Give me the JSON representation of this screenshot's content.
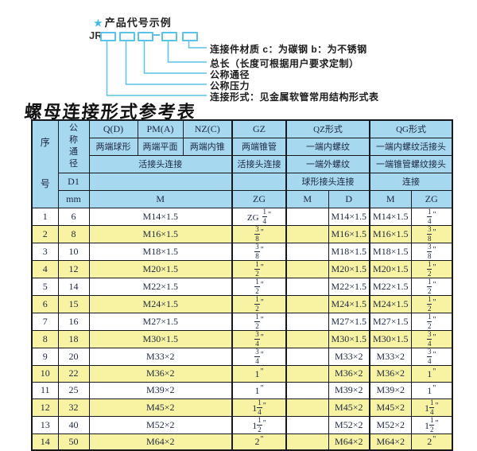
{
  "diagram": {
    "star": "★",
    "heading": "产品代号示例",
    "code_prefix": "JR",
    "labels": [
      "连接件材质  c：为碳钢  b：为不锈钢",
      "总长（长度可根据用户要求定制）",
      "公称通径",
      "公称压力",
      "连接形式：见金属软管常用结构形式表"
    ],
    "accent_color": "#58c4e9"
  },
  "table": {
    "title": "螺母连接形式参考表",
    "inch_mark": "\"",
    "colors": {
      "header_bg": "#a6d8ef",
      "alt_row_bg": "#f8f3a3",
      "border": "#15181d",
      "text": "#1c2740"
    },
    "header": {
      "seq": "序号",
      "dn": "公称通径",
      "d1": "D1",
      "mm": "mm",
      "q": "Q(D)",
      "pm": "PM(A)",
      "nz": "NZ(C)",
      "gz": "GZ",
      "qz": "QZ形式",
      "qg": "QG形式",
      "q_desc": "两端球形",
      "pm_desc": "两端平面",
      "nz_desc": "两端内锥",
      "gz_desc": "两端锥管",
      "qz_desc1": "一端内螺纹",
      "qg_desc1": "一端内螺纹活接头",
      "union_conn": "活接头连接",
      "gz_conn": "活接头连接",
      "qz_desc2": "一端外螺纹",
      "qg_desc2": "一端锥管螺纹接头",
      "qz_conn": "球形接头连接",
      "qg_conn": "连接",
      "m_label": "M",
      "zg_label": "ZG",
      "qz_m_label": "M",
      "qz_d_label": "D",
      "qg_m_label": "M",
      "qg_zg_label": "ZG"
    },
    "rows": [
      {
        "no": "1",
        "dn": "6",
        "m": "M14×1.5",
        "zg": {
          "pre": "ZG",
          "num": "1",
          "den": "4"
        },
        "qz_m": "",
        "qz_d": "M14×1.5",
        "qg_m": "M14×1.5",
        "qg_zg": {
          "num": "1",
          "den": "4"
        }
      },
      {
        "no": "2",
        "dn": "8",
        "m": "M16×1.5",
        "zg": {
          "num": "3",
          "den": "8"
        },
        "qz_m": "",
        "qz_d": "M16×1.5",
        "qg_m": "M16×1.5",
        "qg_zg": {
          "num": "3",
          "den": "8"
        }
      },
      {
        "no": "3",
        "dn": "10",
        "m": "M18×1.5",
        "zg": {
          "num": "3",
          "den": "8"
        },
        "qz_m": "",
        "qz_d": "M18×1.5",
        "qg_m": "M18×1.5",
        "qg_zg": {
          "num": "3",
          "den": "8"
        }
      },
      {
        "no": "4",
        "dn": "12",
        "m": "M20×1.5",
        "zg": {
          "num": "1",
          "den": "2"
        },
        "qz_m": "",
        "qz_d": "M20×1.5",
        "qg_m": "M20×1.5",
        "qg_zg": {
          "num": "1",
          "den": "2"
        }
      },
      {
        "no": "5",
        "dn": "14",
        "m": "M22×1.5",
        "zg": {
          "num": "1",
          "den": "2"
        },
        "qz_m": "",
        "qz_d": "M22×1.5",
        "qg_m": "M22×1.5",
        "qg_zg": {
          "num": "1",
          "den": "2"
        }
      },
      {
        "no": "6",
        "dn": "15",
        "m": "M24×1.5",
        "zg": {
          "num": "1",
          "den": "2"
        },
        "qz_m": "",
        "qz_d": "M24×1.5",
        "qg_m": "M24×1.5",
        "qg_zg": {
          "num": "1",
          "den": "2"
        }
      },
      {
        "no": "7",
        "dn": "16",
        "m": "M27×1.5",
        "zg": {
          "num": "1",
          "den": "2"
        },
        "qz_m": "",
        "qz_d": "M27×1.5",
        "qg_m": "M27×1.5",
        "qg_zg": {
          "num": "1",
          "den": "2"
        }
      },
      {
        "no": "8",
        "dn": "18",
        "m": "M30×1.5",
        "zg": {
          "num": "3",
          "den": "4"
        },
        "qz_m": "",
        "qz_d": "M30×1.5",
        "qg_m": "M30×1.5",
        "qg_zg": {
          "num": "3",
          "den": "4"
        }
      },
      {
        "no": "9",
        "dn": "20",
        "m": "M33×2",
        "zg": {
          "num": "3",
          "den": "4"
        },
        "qz_m": "",
        "qz_d": "M33×2",
        "qg_m": "M33×2",
        "qg_zg": {
          "num": "3",
          "den": "4"
        }
      },
      {
        "no": "10",
        "dn": "22",
        "m": "M36×2",
        "zg": {
          "whole": "1"
        },
        "qz_m": "",
        "qz_d": "M36×2",
        "qg_m": "M36×2",
        "qg_zg": {
          "whole": "1"
        }
      },
      {
        "no": "11",
        "dn": "25",
        "m": "M39×2",
        "zg": {
          "whole": "1"
        },
        "qz_m": "",
        "qz_d": "M39×2",
        "qg_m": "M39×2",
        "qg_zg": {
          "whole": "1"
        }
      },
      {
        "no": "12",
        "dn": "32",
        "m": "M45×2",
        "zg": {
          "whole": "1",
          "num": "1",
          "den": "4"
        },
        "qz_m": "",
        "qz_d": "M45×2",
        "qg_m": "M45×2",
        "qg_zg": {
          "whole": "1",
          "num": "1",
          "den": "4"
        }
      },
      {
        "no": "13",
        "dn": "40",
        "m": "M52×2",
        "zg": {
          "whole": "1",
          "num": "1",
          "den": "2"
        },
        "qz_m": "",
        "qz_d": "M52×2",
        "qg_m": "M52×2",
        "qg_zg": {
          "whole": "1",
          "num": "1",
          "den": "2"
        }
      },
      {
        "no": "14",
        "dn": "50",
        "m": "M64×2",
        "zg": {
          "whole": "2"
        },
        "qz_m": "",
        "qz_d": "M64×2",
        "qg_m": "M64×2",
        "qg_zg": {
          "whole": "2"
        }
      }
    ]
  }
}
